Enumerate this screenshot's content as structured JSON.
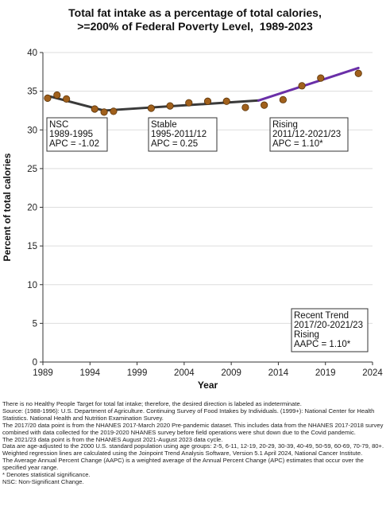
{
  "chart_data": {
    "type": "line",
    "title_lines": [
      "Total fat intake as a percentage of total calories,",
      ">=200% of Federal Poverty Level,  1989-2023"
    ],
    "xlabel": "Year",
    "ylabel": "Percent of total calories",
    "xlim": [
      1989,
      2024
    ],
    "ylim": [
      0,
      40
    ],
    "x_ticks": [
      1989,
      1994,
      1999,
      2004,
      2009,
      2014,
      2019,
      2024
    ],
    "y_ticks": [
      0,
      5,
      10,
      15,
      20,
      25,
      30,
      35,
      40
    ],
    "grid": "horizontal",
    "observed": {
      "x": [
        1989.5,
        1990.5,
        1991.5,
        1994.5,
        1995.5,
        1996.5,
        2000.5,
        2002.5,
        2004.5,
        2006.5,
        2008.5,
        2010.5,
        2012.5,
        2014.5,
        2016.5,
        2018.5,
        2022.5
      ],
      "y": [
        34.1,
        34.5,
        34.0,
        32.7,
        32.3,
        32.4,
        32.8,
        33.1,
        33.5,
        33.7,
        33.7,
        32.9,
        33.2,
        33.9,
        35.7,
        36.7,
        37.3
      ],
      "color": "#a0601c"
    },
    "trends": [
      {
        "x": [
          1989.5,
          1995.5
        ],
        "y": [
          34.4,
          32.5
        ],
        "color": "#3a3a3a"
      },
      {
        "x": [
          1995.5,
          2011.9
        ],
        "y": [
          32.5,
          33.8
        ],
        "color": "#3a3a3a"
      },
      {
        "x": [
          2011.9,
          2022.5
        ],
        "y": [
          33.8,
          38.0
        ],
        "color": "#6a2fa8"
      }
    ],
    "annotations": [
      {
        "name": "nsc",
        "lines": [
          "NSC",
          "1989-1995",
          "APC = -1.02"
        ]
      },
      {
        "name": "stable",
        "lines": [
          "Stable",
          "1995-2011/12",
          "APC =  0.25"
        ]
      },
      {
        "name": "rising",
        "lines": [
          "Rising",
          "2011/12-2021/23",
          "APC =  1.10*"
        ]
      },
      {
        "name": "recent",
        "lines": [
          "Recent Trend",
          "2017/20-2021/23",
          "Rising",
          "AAPC =  1.10*"
        ]
      }
    ]
  },
  "notes": [
    "There is no Healthy People Target for total fat intake; therefore, the desired direction is labeled as indeterminate.",
    "Source: (1988-1996): U.S. Department of Agriculture. Continuing Survey of Food Intakes by Individuals. (1999+): National Center for Health Statistics. National Health and Nutrition Examination Survey.",
    "The 2017/20 data point is from the NHANES 2017-March 2020 Pre-pandemic dataset. This includes data from the NHANES 2017-2018 survey combined with data collected for the 2019-2020 NHANES survey before field operations were shut down due to the Covid pandemic.",
    "The 2021/23 data point is from the NHANES August 2021-August 2023 data cycle.",
    "Data are age-adjusted to the 2000 U.S. standard population using age groups: 2-5, 6-11, 12-19, 20-29, 30-39, 40-49, 50-59, 60-69, 70-79, 80+.",
    "Weighted regression lines are calculated using the Joinpoint Trend Analysis Software, Version 5.1 April 2024, National Cancer Institute.",
    "The Average Annual Percent Change (AAPC) is a weighted average of the Annual Percent Change (APC) estimates that occur over the specified year range.",
    "* Denotes statistical significance.",
    "NSC: Non-Significant Change."
  ]
}
